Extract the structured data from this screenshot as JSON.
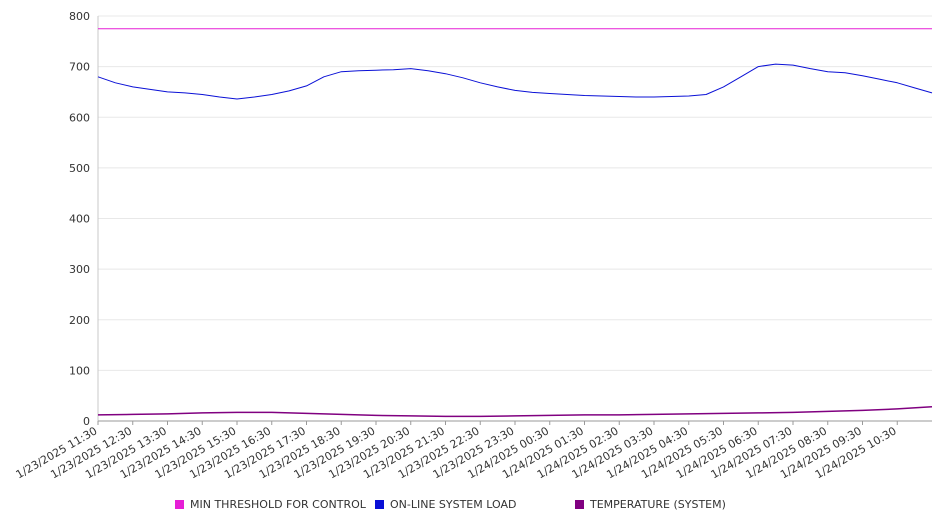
{
  "chart_data": {
    "type": "line",
    "title": "",
    "xlabel": "",
    "ylabel": "",
    "ylim": [
      0,
      800
    ],
    "yticks": [
      "0",
      "100",
      "200",
      "300",
      "400",
      "500",
      "600",
      "700",
      "800"
    ],
    "x_tick_labels": [
      "1/23/2025 11:30",
      "1/23/2025 12:30",
      "1/23/2025 13:30",
      "1/23/2025 14:30",
      "1/23/2025 15:30",
      "1/23/2025 16:30",
      "1/23/2025 17:30",
      "1/23/2025 18:30",
      "1/23/2025 19:30",
      "1/23/2025 20:30",
      "1/23/2025 21:30",
      "1/23/2025 22:30",
      "1/23/2025 23:30",
      "1/24/2025 00:30",
      "1/24/2025 01:30",
      "1/24/2025 02:30",
      "1/24/2025 03:30",
      "1/24/2025 04:30",
      "1/24/2025 05:30",
      "1/24/2025 06:30",
      "1/24/2025 07:30",
      "1/24/2025 08:30",
      "1/24/2025 09:30",
      "1/24/2025 10:30"
    ],
    "x_range": [
      "1/23/2025 11:30",
      "1/24/2025 11:30"
    ],
    "grid": true,
    "legend_position": "bottom",
    "series": [
      {
        "name": "MIN THRESHOLD FOR CONTROL",
        "color": "#e61fd6",
        "x": [
          "1/23/2025 11:30",
          "1/24/2025 11:30"
        ],
        "y": [
          775,
          775
        ]
      },
      {
        "name": "ON-LINE SYSTEM LOAD",
        "color": "#0a10d6",
        "x": [
          "1/23/2025 11:30",
          "1/23/2025 12:00",
          "1/23/2025 12:30",
          "1/23/2025 13:00",
          "1/23/2025 13:30",
          "1/23/2025 14:00",
          "1/23/2025 14:30",
          "1/23/2025 15:00",
          "1/23/2025 15:30",
          "1/23/2025 16:00",
          "1/23/2025 16:30",
          "1/23/2025 17:00",
          "1/23/2025 17:30",
          "1/23/2025 18:00",
          "1/23/2025 18:30",
          "1/23/2025 19:00",
          "1/23/2025 19:30",
          "1/23/2025 20:00",
          "1/23/2025 20:30",
          "1/23/2025 21:00",
          "1/23/2025 21:30",
          "1/23/2025 22:00",
          "1/23/2025 22:30",
          "1/23/2025 23:00",
          "1/23/2025 23:30",
          "1/24/2025 00:00",
          "1/24/2025 00:30",
          "1/24/2025 01:00",
          "1/24/2025 01:30",
          "1/24/2025 02:00",
          "1/24/2025 02:30",
          "1/24/2025 03:00",
          "1/24/2025 03:30",
          "1/24/2025 04:00",
          "1/24/2025 04:30",
          "1/24/2025 05:00",
          "1/24/2025 05:30",
          "1/24/2025 06:00",
          "1/24/2025 06:30",
          "1/24/2025 07:00",
          "1/24/2025 07:30",
          "1/24/2025 08:00",
          "1/24/2025 08:30",
          "1/24/2025 09:00",
          "1/24/2025 09:30",
          "1/24/2025 10:00",
          "1/24/2025 10:30",
          "1/24/2025 11:00",
          "1/24/2025 11:30"
        ],
        "y": [
          680,
          668,
          660,
          655,
          650,
          648,
          645,
          640,
          636,
          640,
          645,
          652,
          662,
          680,
          690,
          692,
          693,
          694,
          696,
          692,
          686,
          678,
          668,
          660,
          653,
          649,
          647,
          645,
          643,
          642,
          641,
          640,
          640,
          641,
          642,
          645,
          660,
          680,
          700,
          705,
          703,
          696,
          690,
          688,
          682,
          675,
          668,
          658,
          648
        ]
      },
      {
        "name": "TEMPERATURE (SYSTEM)",
        "color": "#800080",
        "x": [
          "1/23/2025 11:30",
          "1/23/2025 12:30",
          "1/23/2025 13:30",
          "1/23/2025 14:30",
          "1/23/2025 15:30",
          "1/23/2025 16:30",
          "1/23/2025 17:30",
          "1/23/2025 18:30",
          "1/23/2025 19:30",
          "1/23/2025 20:30",
          "1/23/2025 21:30",
          "1/23/2025 22:30",
          "1/23/2025 23:30",
          "1/24/2025 00:30",
          "1/24/2025 01:30",
          "1/24/2025 02:30",
          "1/24/2025 03:30",
          "1/24/2025 04:30",
          "1/24/2025 05:30",
          "1/24/2025 06:30",
          "1/24/2025 07:30",
          "1/24/2025 08:30",
          "1/24/2025 09:30",
          "1/24/2025 10:30",
          "1/24/2025 11:30"
        ],
        "y": [
          12,
          13,
          14,
          16,
          17,
          17,
          15,
          13,
          11,
          10,
          9,
          9,
          10,
          11,
          12,
          12,
          13,
          14,
          15,
          16,
          17,
          19,
          21,
          24,
          28
        ]
      }
    ]
  }
}
